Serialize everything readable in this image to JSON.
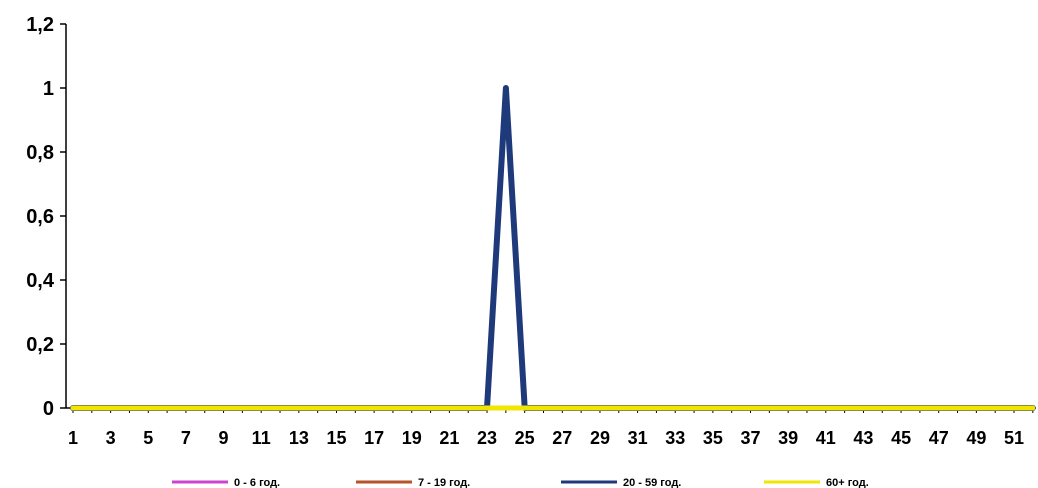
{
  "chart_data": {
    "type": "line",
    "title": "",
    "xlabel": "",
    "ylabel": "",
    "ylim": [
      0,
      1.2
    ],
    "y_ticks": [
      "0",
      "0,2",
      "0,4",
      "0,6",
      "0,8",
      "1",
      "1,2"
    ],
    "x_ticks": [
      "1",
      "3",
      "5",
      "7",
      "9",
      "11",
      "13",
      "15",
      "17",
      "19",
      "21",
      "23",
      "25",
      "27",
      "29",
      "31",
      "33",
      "35",
      "37",
      "39",
      "41",
      "43",
      "45",
      "47",
      "49",
      "51"
    ],
    "x_range": [
      1,
      52
    ],
    "grid": false,
    "legend_position": "bottom",
    "series": [
      {
        "name": "0 - 6 год.",
        "color": "#cc44cc",
        "width": 2,
        "points": [
          [
            1,
            0
          ],
          [
            52,
            0
          ]
        ]
      },
      {
        "name": "7 - 19 год.",
        "color": "#b5532c",
        "width": 2,
        "points": [
          [
            1,
            0
          ],
          [
            52,
            0
          ]
        ]
      },
      {
        "name": "20 - 59 год.",
        "color": "#1f3a7a",
        "width": 6,
        "points": [
          [
            1,
            0
          ],
          [
            23,
            0
          ],
          [
            24,
            1
          ],
          [
            25,
            0
          ],
          [
            52,
            0
          ]
        ]
      },
      {
        "name": "60+ год.",
        "color": "#f2e600",
        "width": 5,
        "points": [
          [
            1,
            0
          ],
          [
            52,
            0
          ]
        ]
      }
    ]
  }
}
